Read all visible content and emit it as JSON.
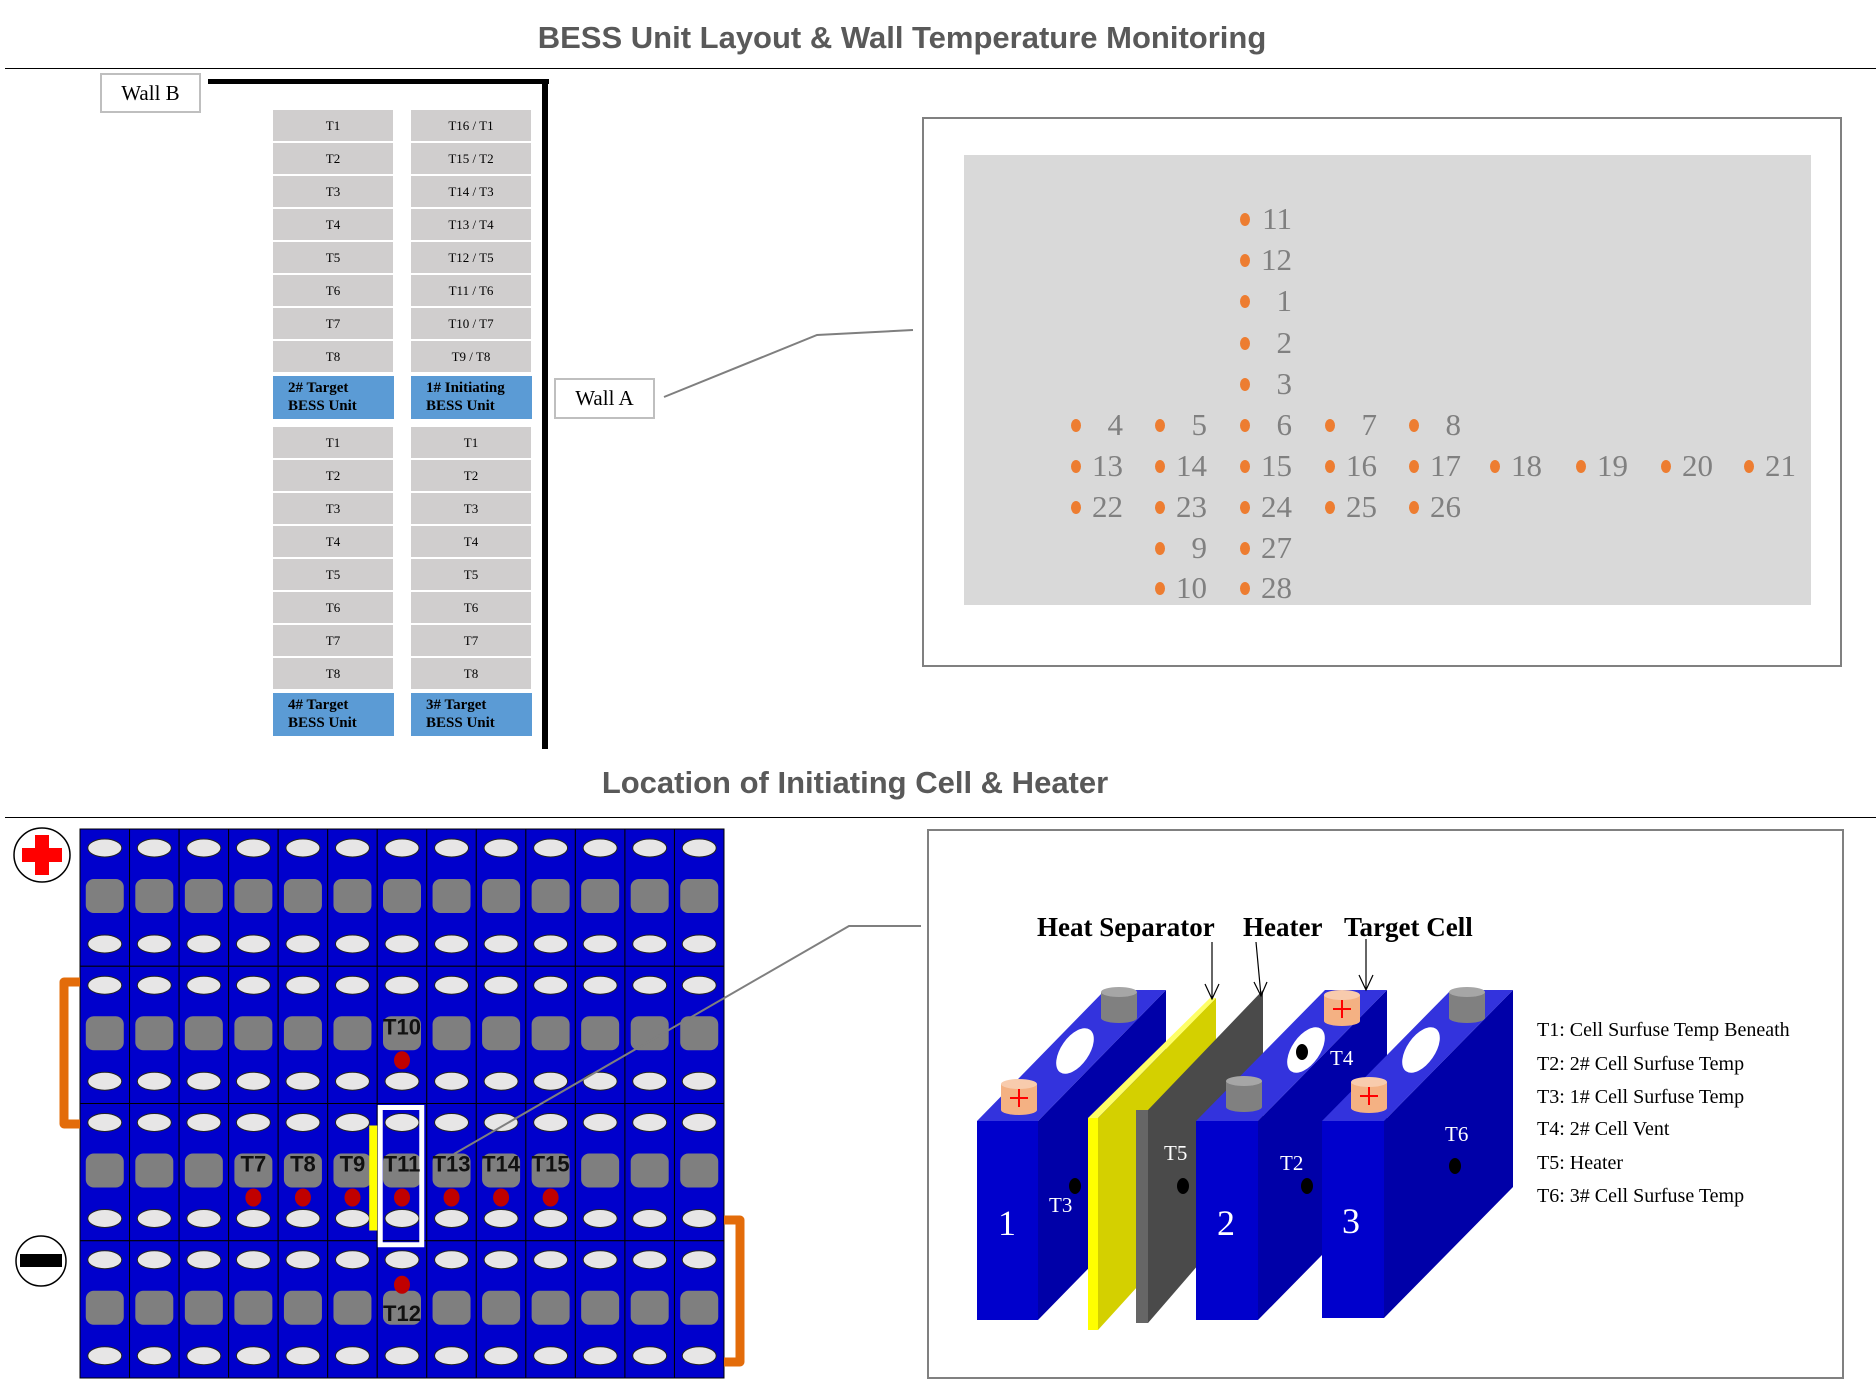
{
  "top_section": {
    "title": "BESS Unit Layout & Wall Temperature Monitoring",
    "wall_b": "Wall B",
    "wall_a": "Wall A",
    "units": [
      {
        "label_line1": "2# Target",
        "label_line2": "BESS Unit",
        "sensors": [
          "T1",
          "T2",
          "T3",
          "T4",
          "T5",
          "T6",
          "T7",
          "T8"
        ]
      },
      {
        "label_line1": "1# Initiating",
        "label_line2": "BESS Unit",
        "sensors": [
          "T16 / T1",
          "T15 / T2",
          "T14 / T3",
          "T13 / T4",
          "T12 / T5",
          "T11 / T6",
          "T10 / T7",
          "T9 / T8"
        ]
      },
      {
        "label_line1": "4# Target",
        "label_line2": "BESS Unit",
        "sensors": [
          "T1",
          "T2",
          "T3",
          "T4",
          "T5",
          "T6",
          "T7",
          "T8"
        ]
      },
      {
        "label_line1": "3# Target",
        "label_line2": "BESS Unit",
        "sensors": [
          "T1",
          "T2",
          "T3",
          "T4",
          "T5",
          "T6",
          "T7",
          "T8"
        ]
      }
    ],
    "wall_sensor_points": [
      "11",
      "12",
      "1",
      "2",
      "3",
      "4",
      "5",
      "6",
      "7",
      "8",
      "13",
      "14",
      "15",
      "16",
      "17",
      "18",
      "19",
      "20",
      "21",
      "22",
      "23",
      "24",
      "25",
      "26",
      "9",
      "27",
      "10",
      "28"
    ],
    "colors": {
      "unit_label": "#5b9bd5",
      "sensor_dot": "#ed7d31",
      "wall_panel": "#d9d9d9"
    }
  },
  "bottom_section": {
    "title": "Location of Initiating Cell & Heater",
    "module": {
      "columns": 13,
      "rows": 4,
      "sensor_labels": [
        "T10",
        "T7",
        "T8",
        "T9",
        "T11",
        "T13",
        "T14",
        "T15",
        "T12"
      ],
      "positive_terminal": "plus-icon",
      "negative_terminal": "minus-icon",
      "colors": {
        "cell": "#0000cc",
        "sensor": "#c00000",
        "heater": "#ffff00",
        "connector": "#e36c0a"
      }
    },
    "detail": {
      "heading_separator": "Heat Separator",
      "heading_heater": "Heater",
      "heading_target": "Target Cell",
      "cell_numbers": [
        "1",
        "2",
        "3"
      ],
      "point_labels": {
        "t2": "T2",
        "t3": "T3",
        "t4": "T4",
        "t5": "T5",
        "t6": "T6"
      },
      "legend": [
        "T1:  Cell Surfuse Temp Beneath",
        "T2:  2# Cell Surfuse Temp",
        "T3:   1# Cell Surfuse Temp",
        "T4:  2# Cell Vent",
        "T5:  Heater",
        "T6:   3# Cell Surfuse Temp"
      ]
    }
  }
}
